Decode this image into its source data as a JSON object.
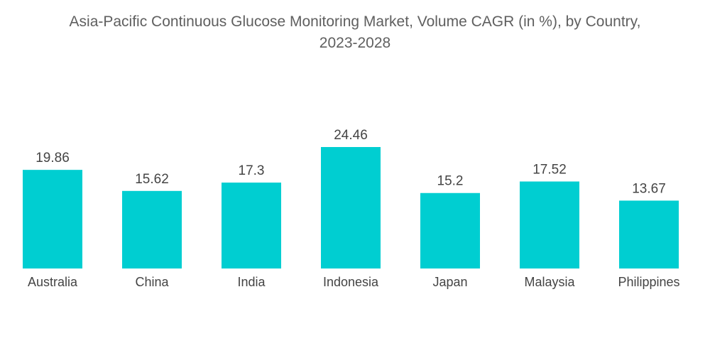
{
  "chart_data": {
    "type": "bar",
    "title": "Asia-Pacific Continuous Glucose Monitoring Market, Volume CAGR (in %), by Country,",
    "subtitle": "2023-2028",
    "categories": [
      "Australia",
      "China",
      "India",
      "Indonesia",
      "Japan",
      "Malaysia",
      "Philippines"
    ],
    "values": [
      19.86,
      15.62,
      17.3,
      24.46,
      15.2,
      17.52,
      13.67
    ],
    "value_labels": [
      "19.86",
      "15.62",
      "17.3",
      "24.46",
      "15.2",
      "17.52",
      "13.67"
    ],
    "xlabel": "",
    "ylabel": "",
    "ylim": [
      0,
      24.46
    ],
    "grid": false,
    "legend": "none",
    "bar_color": "#00CED1"
  }
}
